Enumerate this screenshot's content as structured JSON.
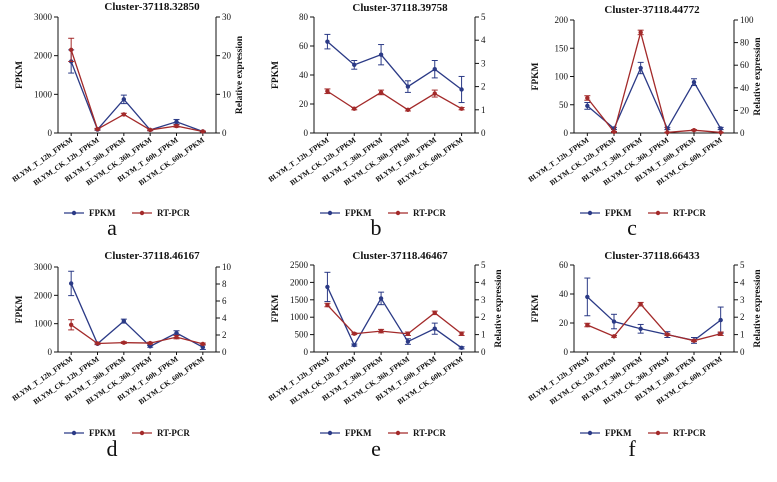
{
  "figure": {
    "legend_labels": [
      "FPKM",
      "RT-PCR"
    ],
    "colors": {
      "fpkm": "#2b3a86",
      "rtpcr": "#a32a2a",
      "axis": "#111111"
    }
  },
  "chart_data": [
    {
      "type": "line",
      "panel": "a",
      "title": "Cluster-37118.32850",
      "categories": [
        "BLYM_T_12h_FPKM",
        "BLYM_CK_12h_FPKM",
        "BLYM_T_36h_FPKM",
        "BLYM_CK_36h_FPKM",
        "BLYM_T_60h_FPKM",
        "BLYM_CK_60h_FPKM"
      ],
      "ylabel": "FPKM",
      "y2label": "Relative expression",
      "ylim": [
        0,
        3000
      ],
      "yticks": [
        0,
        1000,
        2000,
        3000
      ],
      "y2lim": [
        0,
        30
      ],
      "y2ticks": [
        0,
        10,
        20,
        30
      ],
      "series": [
        {
          "name": "FPKM",
          "axis": "left",
          "values": [
            1850,
            90,
            870,
            80,
            290,
            40
          ],
          "errors": [
            300,
            20,
            110,
            20,
            60,
            10
          ]
        },
        {
          "name": "RT-PCR",
          "axis": "right",
          "values": [
            21.5,
            1.0,
            4.8,
            0.8,
            1.8,
            0.4
          ],
          "errors": [
            3.0,
            0.2,
            0.3,
            0.2,
            0.3,
            0.1
          ]
        }
      ]
    },
    {
      "type": "line",
      "panel": "b",
      "title": "Cluster-37118.39758",
      "categories": [
        "BLYM_T_12h_FPKM",
        "BLYM_CK_12h_FPKM",
        "BLYM_T_36h_FPKM",
        "BLYM_CK_36h_FPKM",
        "BLYM_T_60h_FPKM",
        "BLYM_CK_60h_FPKM"
      ],
      "ylabel": "FPKM",
      "y2label": "",
      "ylim": [
        0,
        80
      ],
      "yticks": [
        0,
        20,
        40,
        60,
        80
      ],
      "y2lim": [
        0,
        5
      ],
      "y2ticks": [
        0,
        1,
        2,
        3,
        4,
        5
      ],
      "series": [
        {
          "name": "FPKM",
          "axis": "left",
          "values": [
            63,
            47,
            54,
            32,
            44,
            30
          ],
          "errors": [
            5,
            3,
            7,
            4,
            6,
            9
          ]
        },
        {
          "name": "RT-PCR",
          "axis": "right",
          "values": [
            1.8,
            1.05,
            1.75,
            1.0,
            1.7,
            1.05
          ],
          "errors": [
            0.1,
            0.05,
            0.1,
            0.05,
            0.15,
            0.05
          ]
        }
      ]
    },
    {
      "type": "line",
      "panel": "c",
      "title": "Cluster-37118.44772",
      "categories": [
        "BLYM_T_12h_FPKM",
        "BLYM_CK_12h_FPKM",
        "BLYM_T_36h_FPKM",
        "BLYM_CK_36h_FPKM",
        "BLYM_T_60h_FPKM",
        "BLYM_CK_60h_FPKM"
      ],
      "ylabel": "FPKM",
      "y2label": "Relative expression",
      "ylim": [
        0,
        200
      ],
      "yticks": [
        0,
        50,
        100,
        150,
        200
      ],
      "y2lim": [
        0,
        100
      ],
      "y2ticks": [
        0,
        20,
        40,
        60,
        80,
        100
      ],
      "series": [
        {
          "name": "FPKM",
          "axis": "left",
          "values": [
            48,
            8,
            115,
            8,
            90,
            8
          ],
          "errors": [
            6,
            2,
            10,
            2,
            6,
            2
          ]
        },
        {
          "name": "RT-PCR",
          "axis": "right",
          "values": [
            31,
            1,
            89,
            0.5,
            2.5,
            0.5
          ],
          "errors": [
            2,
            0.3,
            2,
            0.2,
            0.5,
            0.2
          ]
        }
      ]
    },
    {
      "type": "line",
      "panel": "d",
      "title": "Cluster-37118.46167",
      "categories": [
        "BLYM_T_12h_FPKM",
        "BLYM_CK_12h_FPKM",
        "BLYM_T_36h_FPKM",
        "BLYM_CK_36h_FPKM",
        "BLYM_T_60h_FPKM",
        "BLYM_CK_60h_FPKM"
      ],
      "ylabel": "FPKM",
      "y2label": "",
      "ylim": [
        0,
        3000
      ],
      "yticks": [
        0,
        1000,
        2000,
        3000
      ],
      "y2lim": [
        0,
        10
      ],
      "y2ticks": [
        0,
        2,
        4,
        6,
        8,
        10
      ],
      "series": [
        {
          "name": "FPKM",
          "axis": "left",
          "values": [
            2420,
            290,
            1090,
            200,
            670,
            170
          ],
          "errors": [
            430,
            30,
            70,
            30,
            80,
            80
          ]
        },
        {
          "name": "RT-PCR",
          "axis": "right",
          "values": [
            3.2,
            1.0,
            1.1,
            1.05,
            1.75,
            0.95
          ],
          "errors": [
            0.6,
            0.1,
            0.1,
            0.1,
            0.2,
            0.1
          ]
        }
      ]
    },
    {
      "type": "line",
      "panel": "e",
      "title": "Cluster-37118.46467",
      "categories": [
        "BLYM_T_12h_FPKM",
        "BLYM_CK_12h_FPKM",
        "BLYM_T_36h_FPKM",
        "BLYM_CK_36h_FPKM",
        "BLYM_T_60h_FPKM",
        "BLYM_CK_60h_FPKM"
      ],
      "ylabel": "FPKM",
      "y2label": "Relative expression",
      "ylim": [
        0,
        2500
      ],
      "yticks": [
        0,
        500,
        1000,
        1500,
        2000,
        2500
      ],
      "y2lim": [
        0,
        5
      ],
      "y2ticks": [
        0,
        1,
        2,
        3,
        4,
        5
      ],
      "series": [
        {
          "name": "FPKM",
          "axis": "left",
          "values": [
            1870,
            200,
            1540,
            300,
            670,
            120
          ],
          "errors": [
            420,
            30,
            180,
            80,
            160,
            30
          ]
        },
        {
          "name": "RT-PCR",
          "axis": "right",
          "values": [
            2.7,
            1.05,
            1.2,
            1.05,
            2.25,
            1.05
          ],
          "errors": [
            0.1,
            0.05,
            0.1,
            0.1,
            0.1,
            0.1
          ]
        }
      ]
    },
    {
      "type": "line",
      "panel": "f",
      "title": "Cluster-37118.66433",
      "categories": [
        "BLYM_T_12h_FPKM",
        "BLYM_CK_12h_FPKM",
        "BLYM_T_36h_FPKM",
        "BLYM_CK_36h_FPKM",
        "BLYM_T_60h_FPKM",
        "BLYM_CK_60h_FPKM"
      ],
      "ylabel": "FPKM",
      "y2label": "Relative expression",
      "ylim": [
        0,
        60
      ],
      "yticks": [
        0,
        20,
        40,
        60
      ],
      "y2lim": [
        0,
        5
      ],
      "y2ticks": [
        0,
        1,
        2,
        3,
        4,
        5
      ],
      "series": [
        {
          "name": "FPKM",
          "axis": "left",
          "values": [
            38,
            21,
            16,
            12,
            8,
            22
          ],
          "errors": [
            13,
            5,
            3,
            2,
            2,
            9
          ]
        },
        {
          "name": "RT-PCR",
          "axis": "right",
          "values": [
            1.55,
            0.9,
            2.75,
            1.0,
            0.65,
            1.05
          ],
          "errors": [
            0.1,
            0.05,
            0.1,
            0.05,
            0.05,
            0.1
          ]
        }
      ]
    }
  ]
}
